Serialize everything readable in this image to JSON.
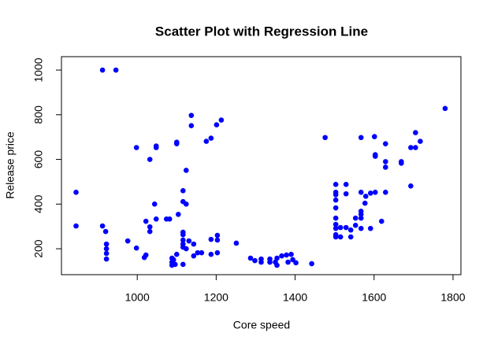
{
  "chart_data": {
    "type": "scatter",
    "title": "Scatter Plot with Regression Line",
    "x_label": "Core speed",
    "y_label": "Release price",
    "color": "#0000ff",
    "x": [
      845,
      845,
      912,
      946,
      912,
      920,
      922,
      922,
      922,
      922,
      976,
      998,
      998,
      1018,
      1022,
      1022,
      1032,
      1032,
      1032,
      1044,
      1048,
      1048,
      1048,
      1074,
      1082,
      1100,
      1100,
      1088,
      1088,
      1088,
      1092,
      1096,
      1100,
      1104,
      1116,
      1116,
      1116,
      1116,
      1116,
      1116,
      1116,
      1116,
      1124,
      1124,
      1124,
      1131,
      1137,
      1137,
      1143,
      1143,
      1153,
      1163,
      1175,
      1187,
      1187,
      1187,
      1201,
      1203,
      1203,
      1203,
      1213,
      1251,
      1287,
      1298,
      1314,
      1314,
      1336,
      1336,
      1350,
      1354,
      1354,
      1366,
      1378,
      1382,
      1390,
      1394,
      1402,
      1442,
      1476,
      1503,
      1503,
      1503,
      1503,
      1503,
      1503,
      1503,
      1503,
      1503,
      1503,
      1515,
      1515,
      1529,
      1529,
      1529,
      1541,
      1541,
      1553,
      1553,
      1567,
      1567,
      1567,
      1567,
      1567,
      1567,
      1577,
      1579,
      1591,
      1591,
      1601,
      1603,
      1603,
      1603,
      1619,
      1629,
      1629,
      1629,
      1629,
      1669,
      1669,
      1693,
      1693,
      1705,
      1705,
      1717,
      1780
    ],
    "values": [
      453,
      302,
      1000,
      1000,
      302,
      277,
      221,
      200,
      179,
      154,
      235,
      653,
      203,
      161,
      172,
      323,
      298,
      277,
      600,
      400,
      333,
      653,
      660,
      333,
      333,
      677,
      670,
      158,
      140,
      126,
      151,
      130,
      175,
      354,
      460,
      411,
      274,
      263,
      239,
      221,
      207,
      130,
      551,
      400,
      200,
      235,
      797,
      751,
      221,
      168,
      182,
      182,
      681,
      695,
      242,
      175,
      755,
      239,
      260,
      182,
      776,
      225,
      158,
      147,
      140,
      154,
      154,
      140,
      140,
      126,
      158,
      168,
      172,
      140,
      175,
      151,
      137,
      133,
      698,
      488,
      453,
      442,
      418,
      383,
      337,
      309,
      291,
      263,
      253,
      253,
      295,
      488,
      446,
      295,
      253,
      284,
      305,
      337,
      698,
      453,
      368,
      354,
      337,
      291,
      404,
      435,
      449,
      291,
      702,
      621,
      614,
      453,
      323,
      670,
      590,
      565,
      453,
      590,
      583,
      653,
      481,
      720,
      653,
      681,
      828
    ],
    "xlim": [
      808,
      1820
    ],
    "ylim": [
      84,
      1060
    ],
    "xticks": [
      1000,
      1200,
      1400,
      1600,
      1800
    ],
    "yticks": [
      200,
      400,
      600,
      800,
      1000
    ]
  }
}
